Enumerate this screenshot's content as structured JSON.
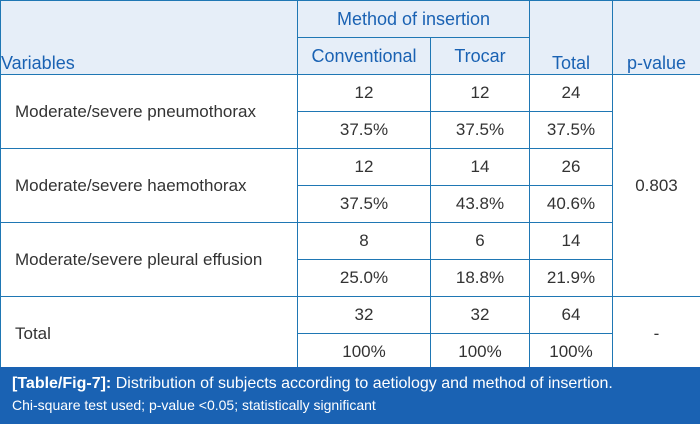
{
  "header": {
    "variables": "Variables",
    "method_group": "Method of insertion",
    "conventional": "Conventional",
    "trocar": "Trocar",
    "total": "Total",
    "pvalue": "p-value"
  },
  "rows": [
    {
      "label": "Moderate/severe pneumothorax",
      "conventional": [
        "12",
        "37.5%"
      ],
      "trocar": [
        "12",
        "37.5%"
      ],
      "total": [
        "24",
        "37.5%"
      ]
    },
    {
      "label": "Moderate/severe haemothorax",
      "conventional": [
        "12",
        "37.5%"
      ],
      "trocar": [
        "14",
        "43.8%"
      ],
      "total": [
        "26",
        "40.6%"
      ]
    },
    {
      "label": "Moderate/severe pleural effusion",
      "conventional": [
        "8",
        "25.0%"
      ],
      "trocar": [
        "6",
        "18.8%"
      ],
      "total": [
        "14",
        "21.9%"
      ]
    },
    {
      "label": "Total",
      "conventional": [
        "32",
        "100%"
      ],
      "trocar": [
        "32",
        "100%"
      ],
      "total": [
        "64",
        "100%"
      ]
    }
  ],
  "pvalue_main": "0.803",
  "pvalue_total": "-",
  "caption": {
    "label": "[Table/Fig-7]:",
    "text": "Distribution of subjects according to aetiology and method of insertion.",
    "note": "Chi-square test used; p-value <0.05; statistically significant"
  },
  "colors": {
    "accent": "#1a62b3",
    "header_bg": "#e6eef8",
    "border": "#1f77b4"
  }
}
